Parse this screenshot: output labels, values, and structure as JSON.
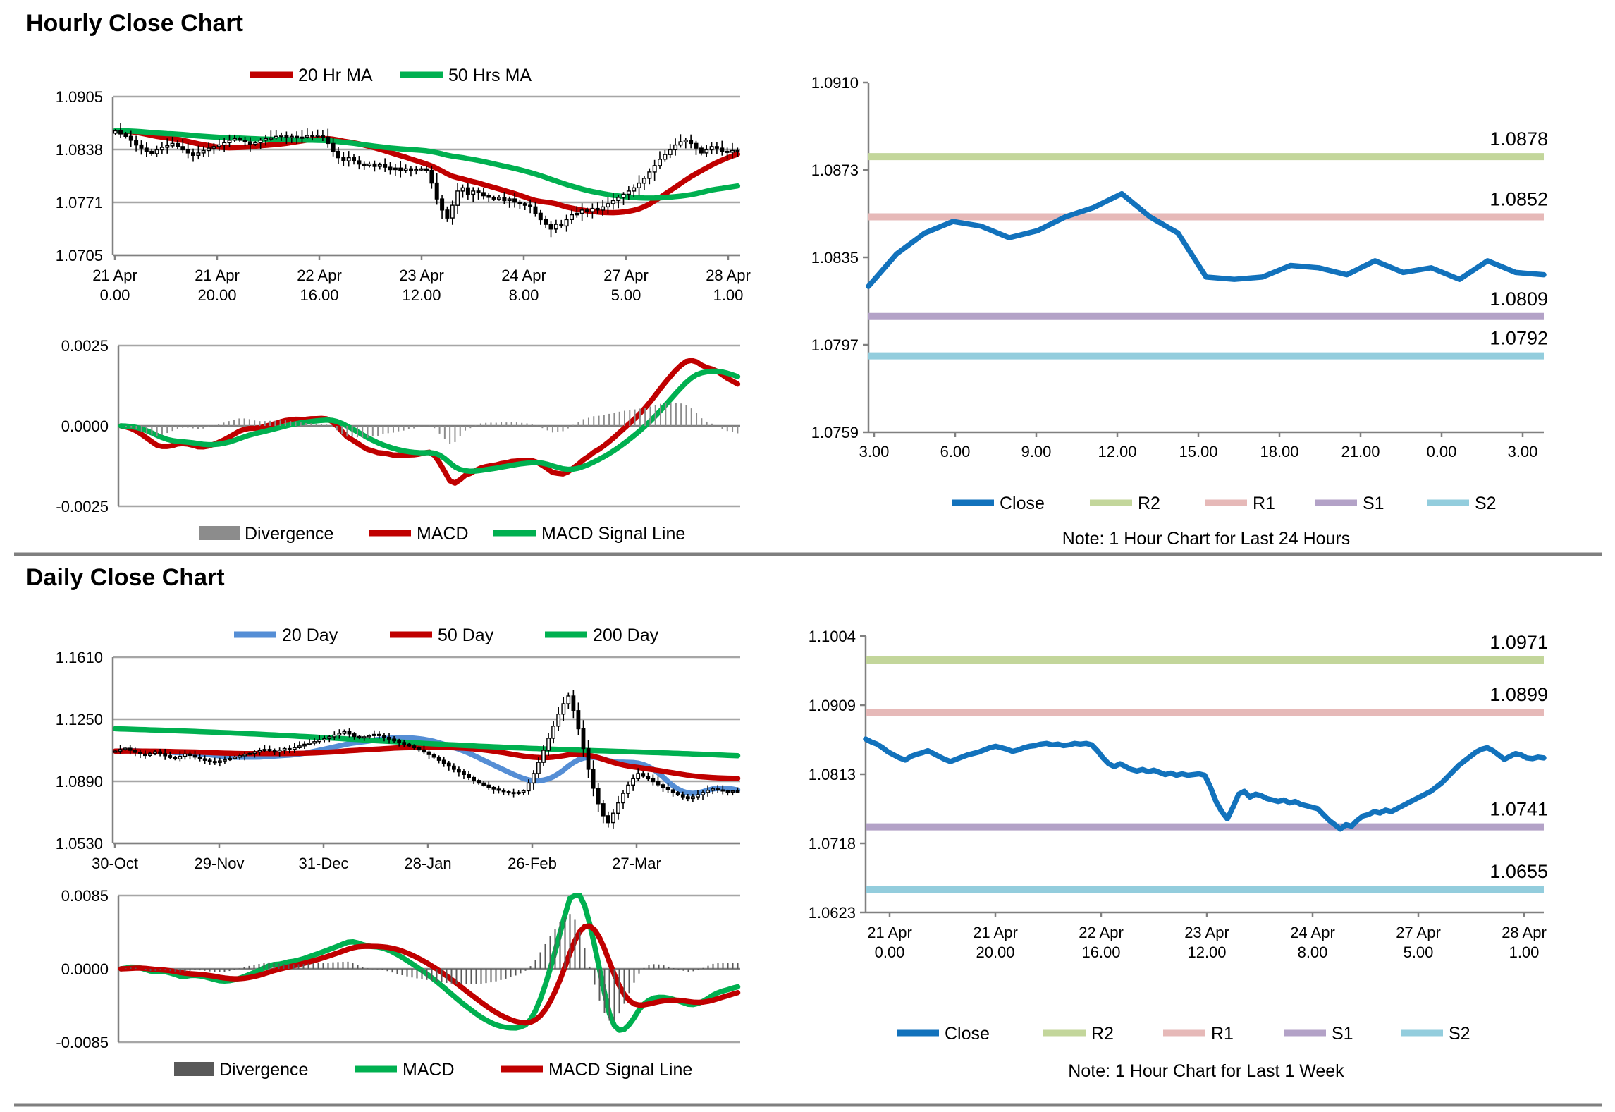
{
  "titles": {
    "hourly": "Hourly Close Chart",
    "daily": "Daily Close Chart"
  },
  "notes": {
    "hourly_sr": "Note: 1 Hour Chart for Last 24 Hours",
    "daily_sr": "Note: 1 Hour Chart for Last 1 Week"
  },
  "colors": {
    "red": "#C00000",
    "green": "#00B050",
    "blue20day": "#558ED5",
    "close_blue": "#1272BC",
    "r2": "#C3D69B",
    "r1": "#E6B9B8",
    "s1": "#B3A2C7",
    "s2": "#93CDDD",
    "divergence_hourly": "#8C8C8C",
    "divergence_daily": "#595959",
    "grid": "#A6A6A6",
    "axis": "#808080",
    "divider": "#7F7F7F"
  },
  "chart_data": [
    {
      "id": "hourly_price",
      "type": "candlestick",
      "title": "Hourly Close Chart",
      "legend": [
        {
          "label": "20 Hr MA",
          "color": "#C00000",
          "period": 20
        },
        {
          "label": "50 Hrs MA",
          "color": "#00B050",
          "period": 50
        }
      ],
      "y_tick_labels": [
        "1.0905",
        "1.0838",
        "1.0771",
        "1.0705"
      ],
      "y_range": [
        1.0705,
        1.0905
      ],
      "x_tick_labels": [
        [
          "21 Apr",
          "0.00"
        ],
        [
          "21 Apr",
          "20.00"
        ],
        [
          "22 Apr",
          "16.00"
        ],
        [
          "23 Apr",
          "12.00"
        ],
        [
          "24 Apr",
          "8.00"
        ],
        [
          "27 Apr",
          "5.00"
        ],
        [
          "28 Apr",
          "1.00"
        ]
      ],
      "close": [
        1.0862,
        1.0858,
        1.0855,
        1.085,
        1.0844,
        1.084,
        1.0836,
        1.0833,
        1.0838,
        1.0841,
        1.0843,
        1.0846,
        1.0842,
        1.0838,
        1.0834,
        1.0831,
        1.0834,
        1.0837,
        1.084,
        1.0842,
        1.0844,
        1.0847,
        1.085,
        1.0852,
        1.085,
        1.0848,
        1.0845,
        1.0847,
        1.085,
        1.0852,
        1.0853,
        1.0855,
        1.0856,
        1.0854,
        1.0855,
        1.0853,
        1.0854,
        1.0856,
        1.0855,
        1.0856,
        1.0854,
        1.0846,
        1.0836,
        1.0828,
        1.0824,
        1.0828,
        1.0824,
        1.082,
        1.0818,
        1.082,
        1.0817,
        1.0819,
        1.0816,
        1.0813,
        1.0815,
        1.0812,
        1.0814,
        1.0812,
        1.0813,
        1.0814,
        1.0812,
        1.0796,
        1.0776,
        1.0762,
        1.0752,
        1.0768,
        1.0786,
        1.079,
        1.0782,
        1.0786,
        1.0784,
        1.078,
        1.0778,
        1.0776,
        1.0778,
        1.0774,
        1.0776,
        1.0772,
        1.077,
        1.0768,
        1.0766,
        1.0758,
        1.075,
        1.0744,
        1.0738,
        1.0744,
        1.0742,
        1.075,
        1.0756,
        1.0758,
        1.0762,
        1.076,
        1.0764,
        1.0762,
        1.0766,
        1.077,
        1.0774,
        1.0778,
        1.0782,
        1.0786,
        1.079,
        1.0796,
        1.0802,
        1.081,
        1.0818,
        1.0826,
        1.0832,
        1.0838,
        1.0844,
        1.0848,
        1.085,
        1.0846,
        1.084,
        1.0834,
        1.0838,
        1.0842,
        1.084,
        1.0836,
        1.0835,
        1.0837,
        1.0836
      ]
    },
    {
      "id": "hourly_macd",
      "type": "macd",
      "source": "hourly_price",
      "params": {
        "fast": 12,
        "slow": 26,
        "signal": 9
      },
      "y_tick_labels": [
        "0.0025",
        "0.0000",
        "-0.0025"
      ],
      "y_range": [
        -0.0025,
        0.0025
      ],
      "legend": [
        {
          "label": "Divergence",
          "color": "#8C8C8C",
          "swatch": "bar"
        },
        {
          "label": "MACD",
          "color": "#C00000",
          "swatch": "line"
        },
        {
          "label": "MACD Signal Line",
          "color": "#00B050",
          "swatch": "line"
        }
      ],
      "macd_color": "#C00000",
      "signal_color": "#00B050",
      "divergence_color": "#8C8C8C"
    },
    {
      "id": "hourly_sr",
      "type": "line_levels",
      "y_tick_labels": [
        "1.0910",
        "1.0873",
        "1.0835",
        "1.0797",
        "1.0759"
      ],
      "y_range": [
        1.0759,
        1.091
      ],
      "x_tick_labels": [
        "3.00",
        "6.00",
        "9.00",
        "12.00",
        "15.00",
        "18.00",
        "21.00",
        "0.00",
        "3.00"
      ],
      "close": [
        1.0822,
        1.0836,
        1.0845,
        1.085,
        1.0848,
        1.0843,
        1.0846,
        1.0852,
        1.0856,
        1.0862,
        1.0852,
        1.0845,
        1.0826,
        1.0825,
        1.0826,
        1.0831,
        1.083,
        1.0827,
        1.0833,
        1.0828,
        1.083,
        1.0825,
        1.0833,
        1.0828,
        1.0827
      ],
      "levels": [
        {
          "name": "R2",
          "label": "1.0878",
          "value": 1.0878,
          "color": "#C3D69B"
        },
        {
          "name": "R1",
          "label": "1.0852",
          "value": 1.0852,
          "color": "#E6B9B8"
        },
        {
          "name": "S1",
          "label": "1.0809",
          "value": 1.0809,
          "color": "#B3A2C7"
        },
        {
          "name": "S2",
          "label": "1.0792",
          "value": 1.0792,
          "color": "#93CDDD"
        }
      ],
      "legend": [
        {
          "label": "Close",
          "color": "#1272BC"
        },
        {
          "label": "R2",
          "color": "#C3D69B"
        },
        {
          "label": "R1",
          "color": "#E6B9B8"
        },
        {
          "label": "S1",
          "color": "#B3A2C7"
        },
        {
          "label": "S2",
          "color": "#93CDDD"
        }
      ],
      "note": "Note: 1 Hour Chart for Last 24 Hours"
    },
    {
      "id": "daily_price",
      "type": "candlestick",
      "title": "Daily Close Chart",
      "legend": [
        {
          "label": "20 Day",
          "color": "#558ED5",
          "period": 20
        },
        {
          "label": "50 Day",
          "color": "#C00000",
          "period": 50
        },
        {
          "label": "200 Day",
          "color": "#00B050",
          "period": 200
        }
      ],
      "y_tick_labels": [
        "1.1610",
        "1.1250",
        "1.0890",
        "1.0530"
      ],
      "y_range": [
        1.053,
        1.161
      ],
      "x_tick_labels": [
        [
          "30-Oct"
        ],
        [
          "29-Nov"
        ],
        [
          "31-Dec"
        ],
        [
          "28-Jan"
        ],
        [
          "26-Feb"
        ],
        [
          "27-Mar"
        ]
      ],
      "ma200": {
        "start": 1.1195,
        "end": 1.1032
      },
      "close": [
        1.1065,
        1.1075,
        1.1082,
        1.107,
        1.1058,
        1.1048,
        1.104,
        1.1052,
        1.106,
        1.105,
        1.1038,
        1.1028,
        1.102,
        1.1035,
        1.1048,
        1.104,
        1.103,
        1.102,
        1.1012,
        1.1005,
        1.1,
        1.1008,
        1.1015,
        1.1022,
        1.103,
        1.1038,
        1.1046,
        1.1052,
        1.106,
        1.1068,
        1.1075,
        1.1068,
        1.106,
        1.107,
        1.108,
        1.1075,
        1.1085,
        1.1095,
        1.1105,
        1.1112,
        1.112,
        1.113,
        1.1138,
        1.1148,
        1.1158,
        1.1168,
        1.1178,
        1.1165,
        1.115,
        1.1142,
        1.1148,
        1.1155,
        1.1162,
        1.1155,
        1.1145,
        1.1135,
        1.1125,
        1.1115,
        1.1105,
        1.1095,
        1.1085,
        1.1072,
        1.106,
        1.1045,
        1.103,
        1.1012,
        1.0995,
        1.0978,
        1.096,
        1.0945,
        1.093,
        1.0912,
        1.0895,
        1.088,
        1.0868,
        1.0855,
        1.0845,
        1.0838,
        1.083,
        1.0825,
        1.082,
        1.0826,
        1.0835,
        1.088,
        1.0935,
        1.1,
        1.107,
        1.114,
        1.121,
        1.128,
        1.134,
        1.1385,
        1.13,
        1.1195,
        1.108,
        1.096,
        1.085,
        1.076,
        1.069,
        1.065,
        1.0705,
        1.0765,
        1.082,
        1.0868,
        1.0905,
        1.0935,
        1.092,
        1.0905,
        1.0888,
        1.087,
        1.0855,
        1.084,
        1.0825,
        1.0812,
        1.08,
        1.079,
        1.08,
        1.0812,
        1.0825,
        1.0838,
        1.0846,
        1.084,
        1.0834,
        1.083,
        1.0834,
        1.0832
      ]
    },
    {
      "id": "daily_macd",
      "type": "macd",
      "source": "daily_price",
      "params": {
        "fast": 12,
        "slow": 26,
        "signal": 9
      },
      "y_tick_labels": [
        "0.0085",
        "0.0000",
        "-0.0085"
      ],
      "y_range": [
        -0.0085,
        0.0085
      ],
      "legend": [
        {
          "label": "Divergence",
          "color": "#595959",
          "swatch": "bar"
        },
        {
          "label": "MACD",
          "color": "#00B050",
          "swatch": "line"
        },
        {
          "label": "MACD Signal Line",
          "color": "#C00000",
          "swatch": "line"
        }
      ],
      "macd_color": "#00B050",
      "signal_color": "#C00000",
      "divergence_color": "#595959"
    },
    {
      "id": "daily_sr",
      "type": "line_levels",
      "close_source": "hourly_price",
      "y_tick_labels": [
        "1.1004",
        "1.0909",
        "1.0813",
        "1.0718",
        "1.0623"
      ],
      "y_range": [
        1.0623,
        1.1004
      ],
      "x_tick_labels": [
        [
          "21 Apr",
          "0.00"
        ],
        [
          "21 Apr",
          "20.00"
        ],
        [
          "22 Apr",
          "16.00"
        ],
        [
          "23 Apr",
          "12.00"
        ],
        [
          "24 Apr",
          "8.00"
        ],
        [
          "27 Apr",
          "5.00"
        ],
        [
          "28 Apr",
          "1.00"
        ]
      ],
      "levels": [
        {
          "name": "R2",
          "label": "1.0971",
          "value": 1.0971,
          "color": "#C3D69B"
        },
        {
          "name": "R1",
          "label": "1.0899",
          "value": 1.0899,
          "color": "#E6B9B8"
        },
        {
          "name": "S1",
          "label": "1.0741",
          "value": 1.0741,
          "color": "#B3A2C7"
        },
        {
          "name": "S2",
          "label": "1.0655",
          "value": 1.0655,
          "color": "#93CDDD"
        }
      ],
      "legend": [
        {
          "label": "Close",
          "color": "#1272BC"
        },
        {
          "label": "R2",
          "color": "#C3D69B"
        },
        {
          "label": "R1",
          "color": "#E6B9B8"
        },
        {
          "label": "S1",
          "color": "#B3A2C7"
        },
        {
          "label": "S2",
          "color": "#93CDDD"
        }
      ],
      "note": "Note: 1 Hour Chart for Last 1 Week"
    }
  ]
}
